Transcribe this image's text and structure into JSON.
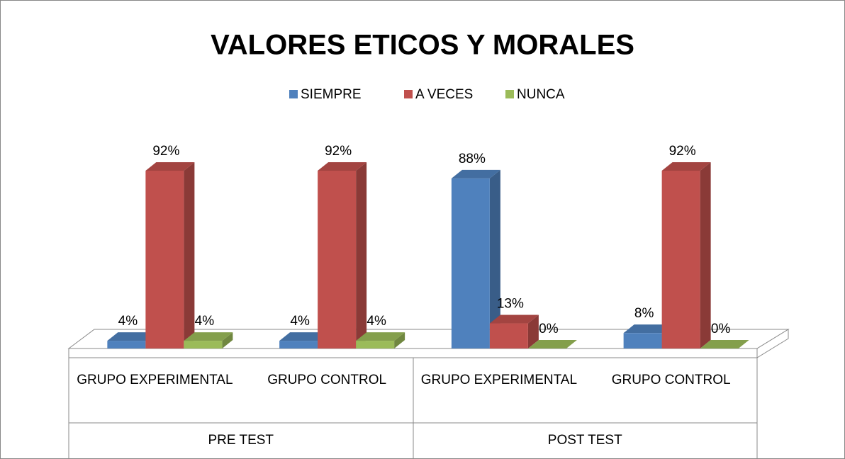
{
  "chart_data": {
    "type": "bar3d",
    "title": "VALORES ETICOS Y MORALES",
    "categories": [
      "GRUPO EXPERIMENTAL",
      "GRUPO CONTROL",
      "GRUPO EXPERIMENTAL",
      "GRUPO CONTROL"
    ],
    "category_groups": [
      "PRE TEST",
      "POST TEST"
    ],
    "series": [
      {
        "name": "SIEMPRE",
        "color": "#4f81bd",
        "values": [
          4,
          4,
          88,
          8
        ],
        "value_labels": [
          "4%",
          "4%",
          "88%",
          "8%"
        ]
      },
      {
        "name": "A VECES",
        "color": "#c0504d",
        "values": [
          92,
          92,
          13,
          92
        ],
        "value_labels": [
          "92%",
          "92%",
          "13%",
          "92%"
        ]
      },
      {
        "name": "NUNCA",
        "color": "#9bbb59",
        "values": [
          4,
          4,
          0,
          0
        ],
        "value_labels": [
          "4%",
          "4%",
          "0%",
          "0%"
        ]
      }
    ],
    "legend": "top"
  }
}
